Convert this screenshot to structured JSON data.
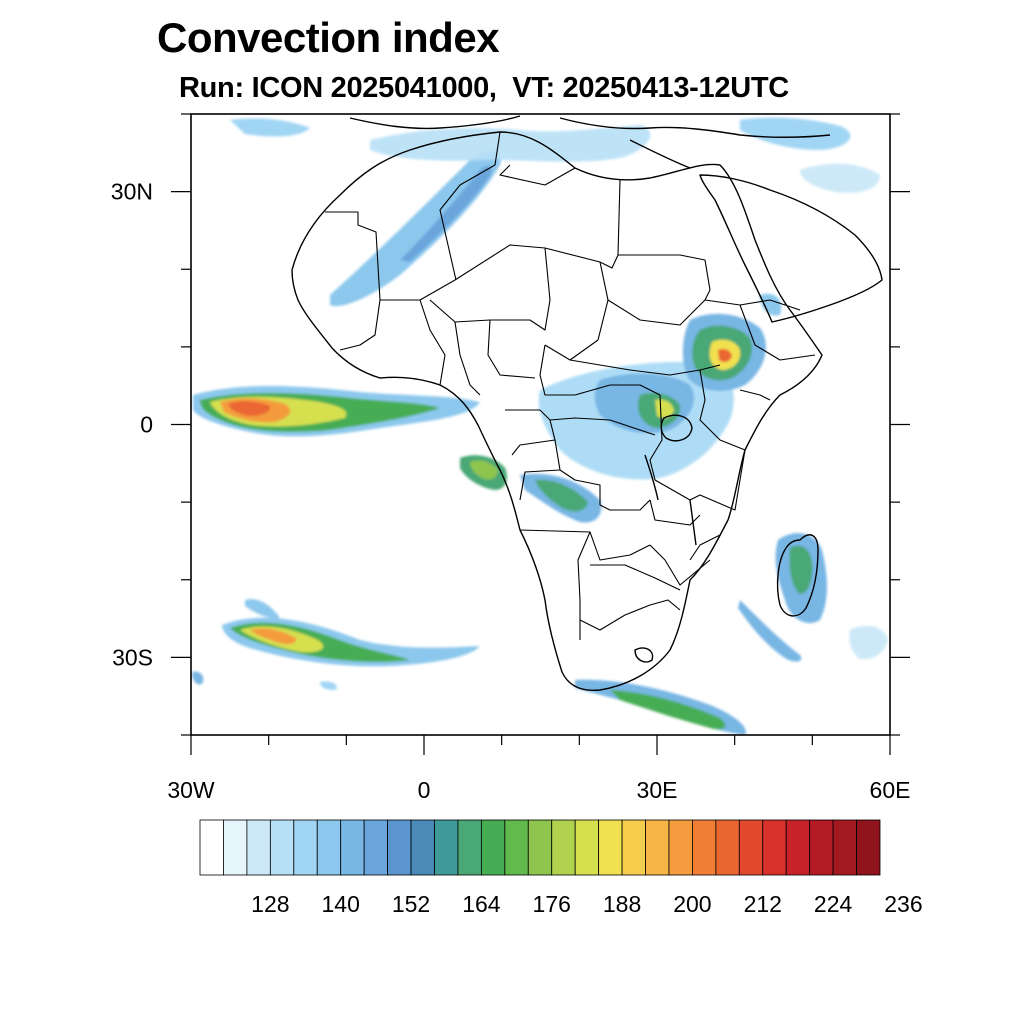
{
  "title": "Convection index",
  "subtitle": "Run: ICON 2025041000,  VT: 20250413-12UTC",
  "map": {
    "lon_range": [
      -30,
      60
    ],
    "lat_range": [
      -40,
      40
    ],
    "lat_ticks": [
      {
        "value": 30,
        "label": "30N"
      },
      {
        "value": 0,
        "label": "0"
      },
      {
        "value": -30,
        "label": "30S"
      }
    ],
    "lon_ticks": [
      {
        "value": -30,
        "label": "30W"
      },
      {
        "value": 0,
        "label": "0"
      },
      {
        "value": 30,
        "label": "30E"
      },
      {
        "value": 60,
        "label": "60E"
      }
    ]
  },
  "colorbar": {
    "labels": [
      "128",
      "140",
      "152",
      "164",
      "176",
      "188",
      "200",
      "212",
      "224",
      "236"
    ],
    "colors": [
      "#ffffff",
      "#e6f4fc",
      "#cde9f8",
      "#b7e0f6",
      "#a0d6f4",
      "#8cc8ed",
      "#78b6e4",
      "#6aa6dc",
      "#5b96cf",
      "#4a89b8",
      "#3f9a9a",
      "#4aa876",
      "#47ad55",
      "#62b94c",
      "#8ec54f",
      "#b1d24f",
      "#d6e04f",
      "#f1e150",
      "#f7cd4e",
      "#f6b545",
      "#f49c3e",
      "#f07f35",
      "#ea6630",
      "#e2482c",
      "#d8302b",
      "#c72227",
      "#b51b24",
      "#a41a20",
      "#8f141b"
    ]
  }
}
